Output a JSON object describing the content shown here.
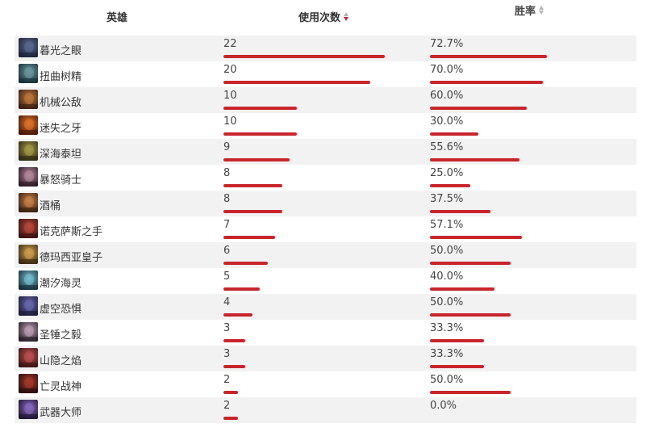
{
  "header": {
    "hero": "英雄",
    "uses": "使用次数",
    "winrate": "胜率"
  },
  "colors": {
    "bar": "#c8252c",
    "sort_active": "#c8252c",
    "sort_inactive": "#b5b5b5",
    "row_alt": "#f2f2f2"
  },
  "sort": {
    "column": "uses",
    "direction": "desc"
  },
  "max_uses": 22,
  "rows": [
    {
      "name": "暮光之眼",
      "uses": "22",
      "winrate": "72.7%",
      "uses_num": 22,
      "rate_num": 72.7,
      "avatar_colors": [
        "#1c2438",
        "#5a6a90"
      ],
      "icon": "hero-shen-icon"
    },
    {
      "name": "扭曲树精",
      "uses": "20",
      "winrate": "70.0%",
      "uses_num": 20,
      "rate_num": 70.0,
      "avatar_colors": [
        "#18303a",
        "#6e9aa0"
      ],
      "icon": "hero-maokai-icon"
    },
    {
      "name": "机械公敌",
      "uses": "10",
      "winrate": "60.0%",
      "uses_num": 10,
      "rate_num": 60.0,
      "avatar_colors": [
        "#3a1e12",
        "#c07a3a"
      ],
      "icon": "hero-rumble-icon"
    },
    {
      "name": "迷失之牙",
      "uses": "10",
      "winrate": "30.0%",
      "uses_num": 10,
      "rate_num": 30.0,
      "avatar_colors": [
        "#4a1808",
        "#e0742a"
      ],
      "icon": "hero-gnar-icon"
    },
    {
      "name": "深海泰坦",
      "uses": "9",
      "winrate": "55.6%",
      "uses_num": 9,
      "rate_num": 55.6,
      "avatar_colors": [
        "#2e2a14",
        "#a89a48"
      ],
      "icon": "hero-nautilus-icon"
    },
    {
      "name": "暴怒骑士",
      "uses": "8",
      "winrate": "25.0%",
      "uses_num": 8,
      "rate_num": 25.0,
      "avatar_colors": [
        "#2a1a26",
        "#b88aa0"
      ],
      "icon": "hero-kled-icon"
    },
    {
      "name": "酒桶",
      "uses": "8",
      "winrate": "37.5%",
      "uses_num": 8,
      "rate_num": 37.5,
      "avatar_colors": [
        "#3a2010",
        "#c8824a"
      ],
      "icon": "hero-gragas-icon"
    },
    {
      "name": "诺克萨斯之手",
      "uses": "7",
      "winrate": "57.1%",
      "uses_num": 7,
      "rate_num": 57.1,
      "avatar_colors": [
        "#3a1010",
        "#b84a3a"
      ],
      "icon": "hero-darius-icon"
    },
    {
      "name": "德玛西亚皇子",
      "uses": "6",
      "winrate": "50.0%",
      "uses_num": 6,
      "rate_num": 50.0,
      "avatar_colors": [
        "#3a2a10",
        "#d0a050"
      ],
      "icon": "hero-jarvan-icon"
    },
    {
      "name": "潮汐海灵",
      "uses": "5",
      "winrate": "40.0%",
      "uses_num": 5,
      "rate_num": 40.0,
      "avatar_colors": [
        "#14303a",
        "#7ac0d0"
      ],
      "icon": "hero-fizz-icon"
    },
    {
      "name": "虚空恐惧",
      "uses": "4",
      "winrate": "50.0%",
      "uses_num": 4,
      "rate_num": 50.0,
      "avatar_colors": [
        "#1a1a3a",
        "#6a6ab0"
      ],
      "icon": "hero-chogath-icon"
    },
    {
      "name": "圣锤之毅",
      "uses": "3",
      "winrate": "33.3%",
      "uses_num": 3,
      "rate_num": 33.3,
      "avatar_colors": [
        "#2a1e2a",
        "#c0a0b8"
      ],
      "icon": "hero-poppy-icon"
    },
    {
      "name": "山隐之焰",
      "uses": "3",
      "winrate": "33.3%",
      "uses_num": 3,
      "rate_num": 33.3,
      "avatar_colors": [
        "#3a1414",
        "#c05050"
      ],
      "icon": "hero-ornn-icon"
    },
    {
      "name": "亡灵战神",
      "uses": "2",
      "winrate": "50.0%",
      "uses_num": 2,
      "rate_num": 50.0,
      "avatar_colors": [
        "#2a0e0e",
        "#a83a2a"
      ],
      "icon": "hero-sion-icon"
    },
    {
      "name": "武器大师",
      "uses": "2",
      "winrate": "0.0%",
      "uses_num": 2,
      "rate_num": 0.0,
      "avatar_colors": [
        "#1e1430",
        "#8a6ac0"
      ],
      "icon": "hero-jax-icon"
    }
  ]
}
